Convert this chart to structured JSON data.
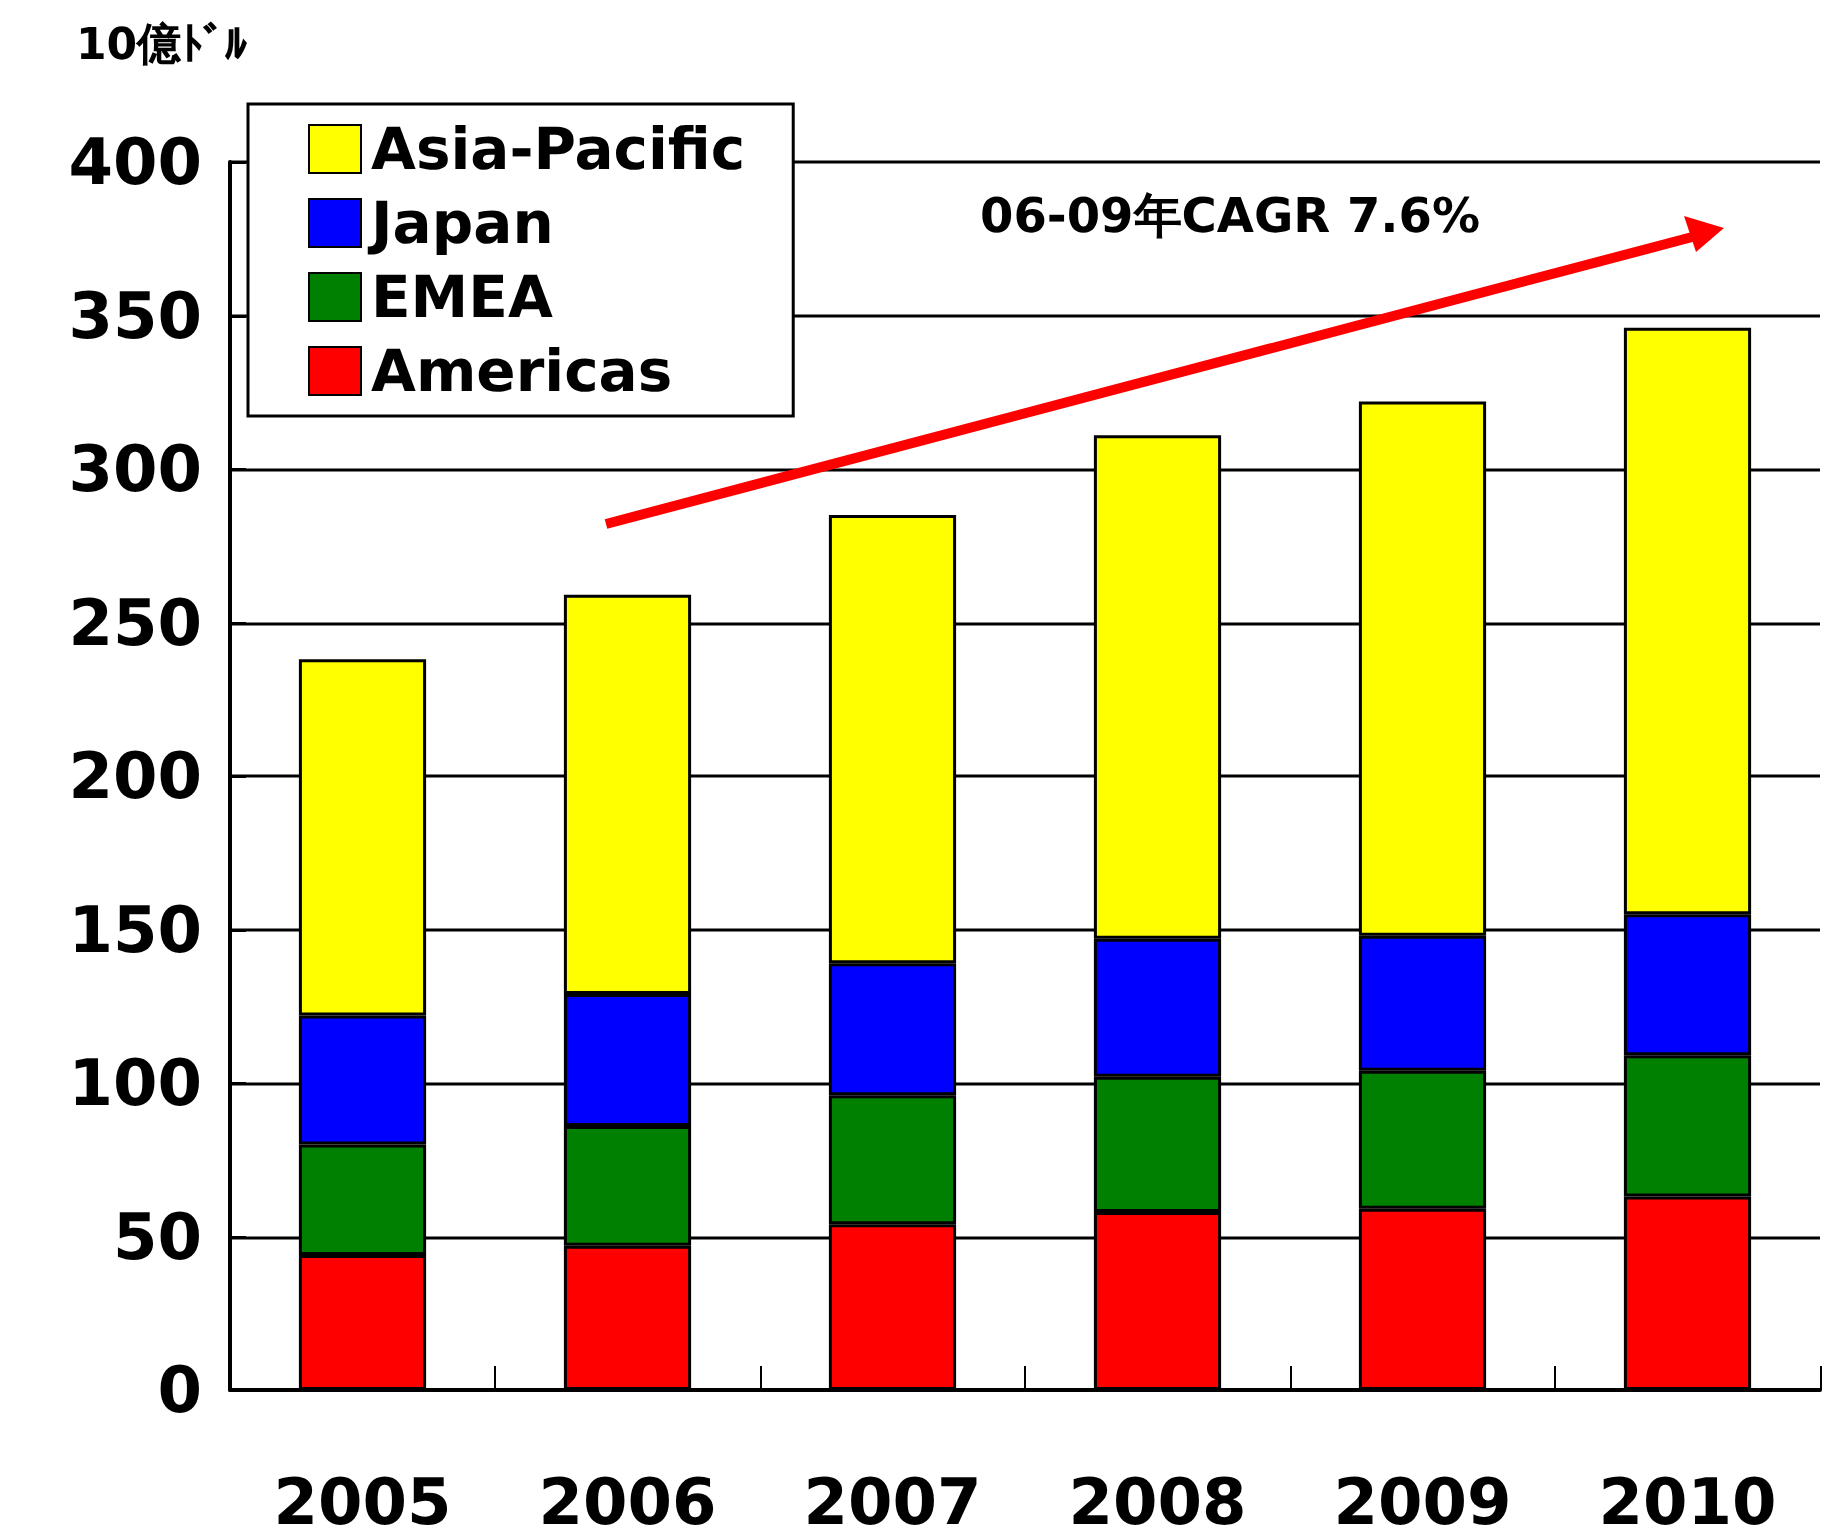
{
  "chart_data": {
    "type": "bar",
    "stacked": true,
    "ylabel": "10億ﾄﾞﾙ",
    "categories": [
      "2005",
      "2006",
      "2007",
      "2008",
      "2009",
      "2010"
    ],
    "series": [
      {
        "name": "Americas",
        "color": "#ff0000",
        "values": [
          44,
          47,
          54,
          58,
          59,
          63
        ]
      },
      {
        "name": "EMEA",
        "color": "#008000",
        "values": [
          36,
          39,
          42,
          44,
          45,
          46
        ]
      },
      {
        "name": "Japan",
        "color": "#0000ff",
        "values": [
          42,
          43,
          43,
          45,
          44,
          46
        ]
      },
      {
        "name": "Asia-Pacific",
        "color": "#ffff00",
        "values": [
          116,
          130,
          146,
          164,
          174,
          191
        ]
      }
    ],
    "ylim": [
      0,
      400
    ],
    "yticks": [
      0,
      50,
      100,
      150,
      200,
      250,
      300,
      350,
      400
    ],
    "grid": "y",
    "legend": "top left",
    "annotations": [
      "06-09年CAGR 7.6%"
    ]
  }
}
